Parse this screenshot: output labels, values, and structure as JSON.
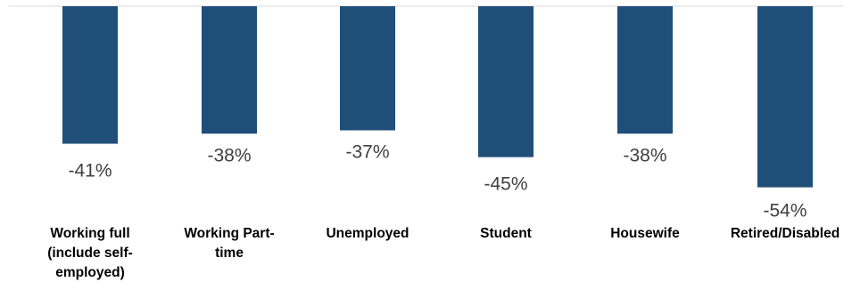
{
  "chart_data": {
    "type": "bar",
    "categories": [
      "Working full (include self-employed)",
      "Working Part-time",
      "Unemployed",
      "Student",
      "Housewife",
      "Retired/Disabled"
    ],
    "values": [
      -41,
      -38,
      -37,
      -45,
      -38,
      -54
    ],
    "value_labels": [
      "-41%",
      "-38%",
      "-37%",
      "-45%",
      "-38%",
      "-54%"
    ],
    "title": "",
    "xlabel": "",
    "ylabel": "",
    "ylim": [
      -60,
      0
    ],
    "grid": false,
    "legend": "none",
    "colors": {
      "bar": "#1f4e79",
      "axis": "#d9d9d9",
      "value_text": "#404040",
      "category_text": "#000000"
    }
  }
}
